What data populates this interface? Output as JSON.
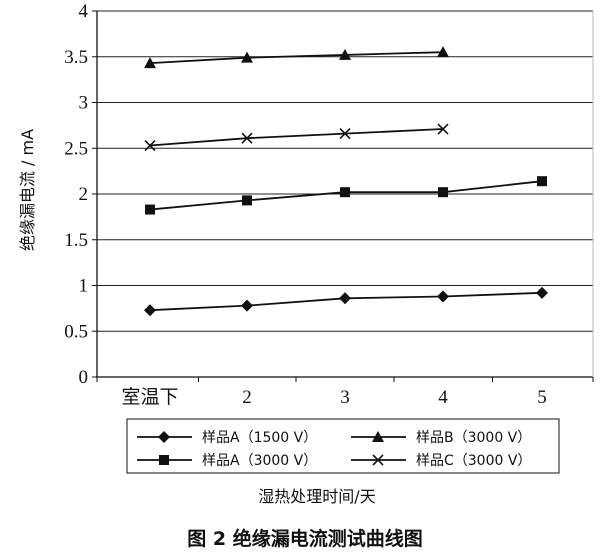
{
  "chart_data": {
    "type": "line",
    "categories": [
      "室温下",
      "2",
      "3",
      "4",
      "5"
    ],
    "ylabel": "绝缘漏电流 / mA",
    "xlabel": "湿热处理时间/天",
    "caption": "图 2  绝缘漏电流测试曲线图",
    "ylim": [
      0,
      4
    ],
    "yticks": [
      "0",
      "0.5",
      "1",
      "1.5",
      "2",
      "2.5",
      "3",
      "3.5",
      "4"
    ],
    "grid": true,
    "legend_position": "bottom",
    "series": [
      {
        "name": "样品A（1500 V）",
        "marker": "diamond",
        "values": [
          0.73,
          0.78,
          0.86,
          0.88,
          0.92
        ]
      },
      {
        "name": "样品B（3000 V）",
        "marker": "triangle",
        "values": [
          3.43,
          3.49,
          3.52,
          3.55,
          null
        ]
      },
      {
        "name": "样品A（3000 V）",
        "marker": "square",
        "values": [
          1.83,
          1.93,
          2.02,
          2.02,
          2.14
        ]
      },
      {
        "name": "样品C（3000 V）",
        "marker": "x",
        "values": [
          2.53,
          2.61,
          2.66,
          2.71,
          null
        ]
      }
    ]
  }
}
